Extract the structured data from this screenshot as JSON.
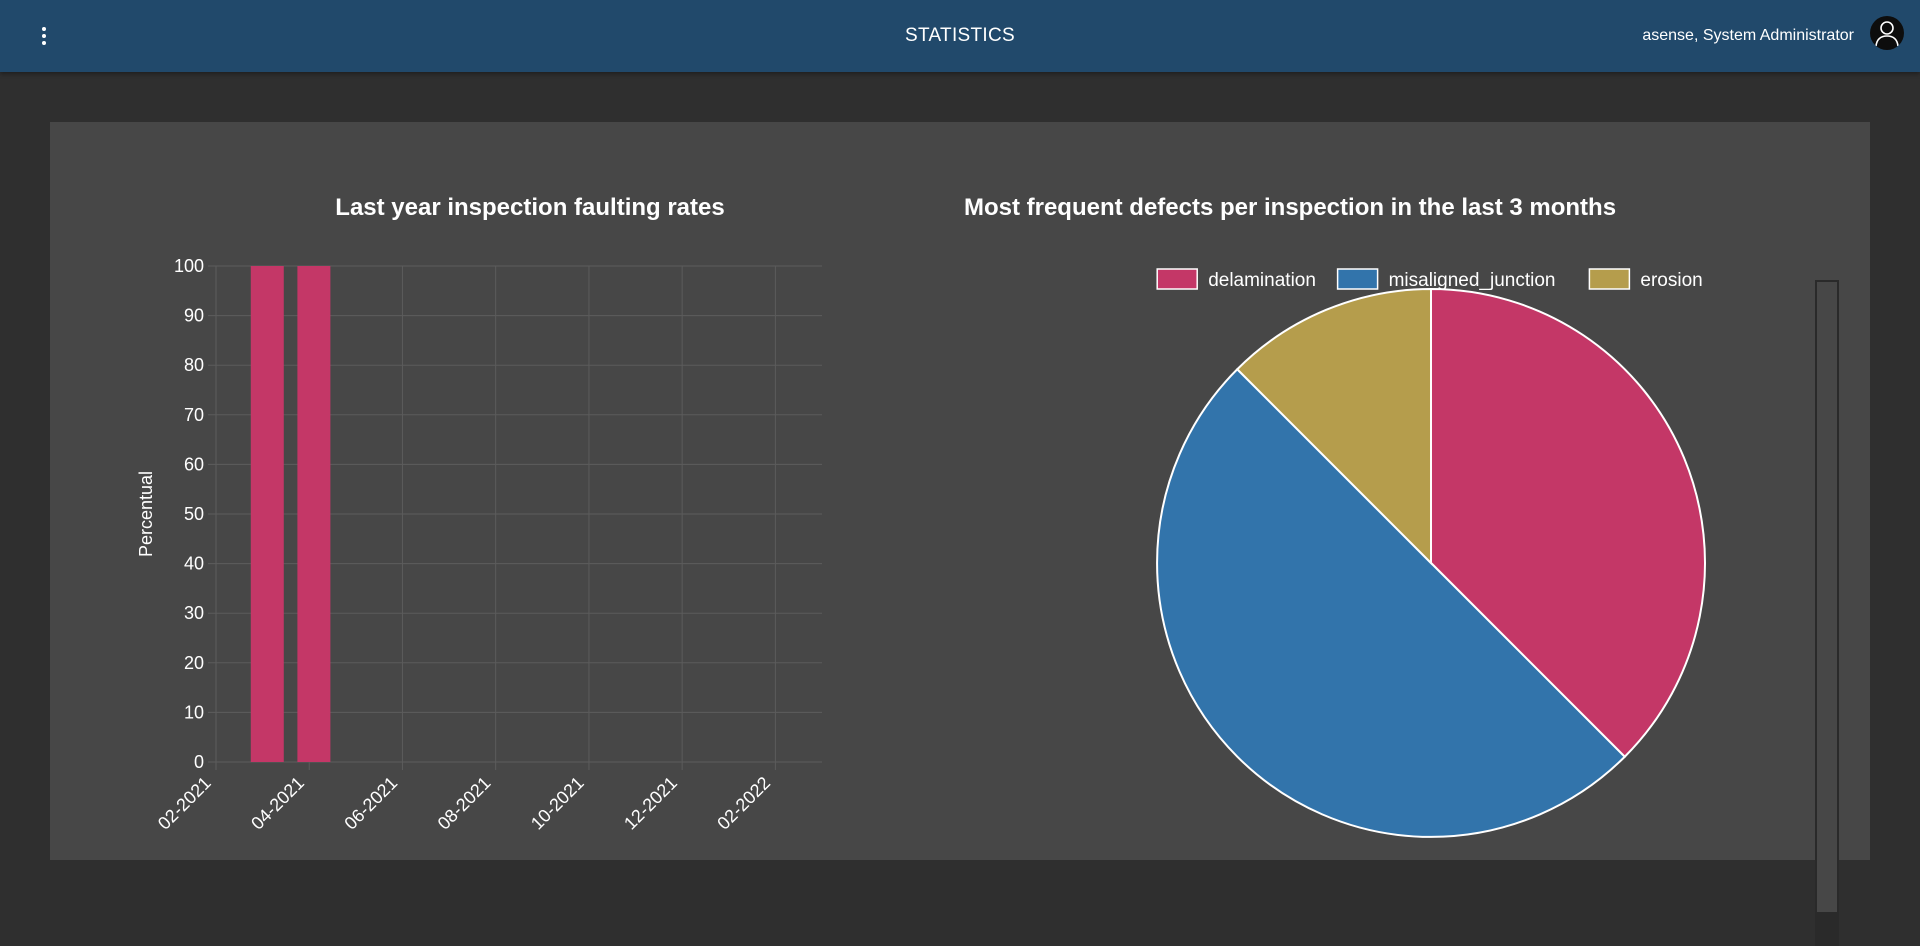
{
  "header": {
    "title": "STATISTICS",
    "user": "asense, System Administrator",
    "menu_icon": "more-vert-icon",
    "avatar_icon": "account-icon"
  },
  "charts": {
    "bar_title": "Last year inspection faulting rates",
    "pie_title": "Most frequent defects per inspection in the last 3 months"
  },
  "chart_data": [
    {
      "type": "bar",
      "title": "Last year inspection faulting rates",
      "ylabel": "Percentual",
      "xlabel": "",
      "ylim": [
        0,
        100
      ],
      "yticks": [
        0,
        10,
        20,
        30,
        40,
        50,
        60,
        70,
        80,
        90,
        100
      ],
      "xticks": [
        "02-2021",
        "04-2021",
        "06-2021",
        "08-2021",
        "10-2021",
        "12-2021",
        "02-2022"
      ],
      "bars": [
        {
          "x": 1.55,
          "value": 100
        },
        {
          "x": 2.05,
          "value": 100
        }
      ],
      "xlim": [
        1,
        7.5
      ],
      "color": "#c43767",
      "grid": true
    },
    {
      "type": "pie",
      "title": "Most frequent defects per inspection in the last 3 months",
      "legend": "top",
      "slices": [
        {
          "label": "delamination",
          "value": 37.5,
          "color": "#c43767"
        },
        {
          "label": "misaligned_junction",
          "value": 50,
          "color": "#3274ab"
        },
        {
          "label": "erosion",
          "value": 12.5,
          "color": "#b59d4c"
        }
      ]
    }
  ]
}
